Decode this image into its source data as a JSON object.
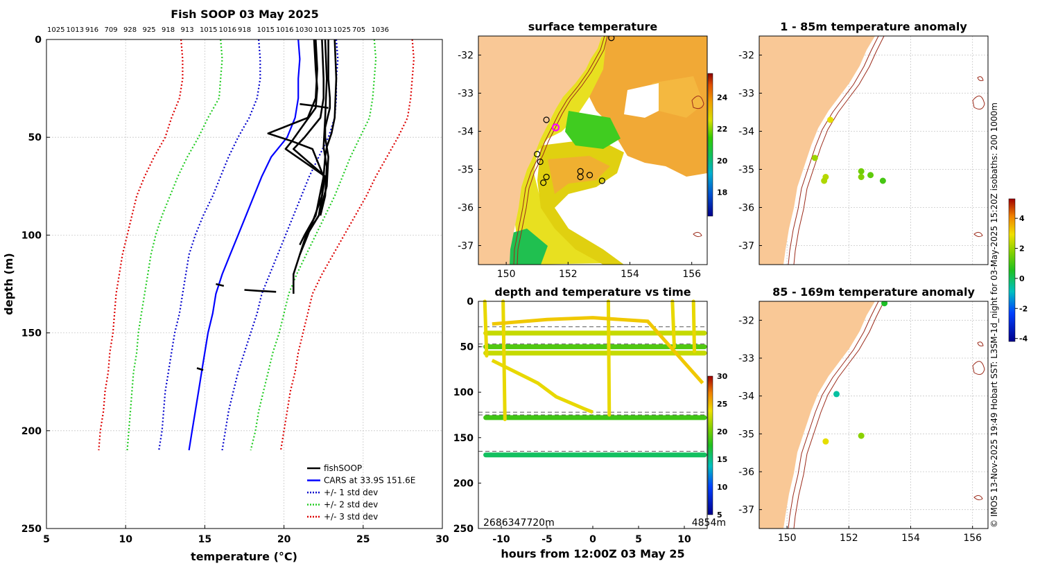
{
  "credit": "© IMOS 13-Nov-2025 19:49 Hobart SST: L3SM-1d_night for 03-May-2025 15:20Z isobaths: 200  1000m",
  "colors": {
    "land": "#f9c896",
    "fishsoop": "#000000",
    "cars": "#0000ff",
    "std1": "#0000cc",
    "std2": "#22cc22",
    "std3": "#dd0000",
    "isobath": "#9b2a1a"
  },
  "chart_data": [
    {
      "type": "line",
      "title": "Fish SOOP 03 May 2025",
      "xlabel": "temperature (°C)",
      "ylabel": "depth (m)",
      "xlim": [
        5,
        30
      ],
      "ylim": [
        250,
        0
      ],
      "xticks": [
        5,
        10,
        15,
        20,
        25,
        30
      ],
      "yticks": [
        0,
        50,
        100,
        150,
        200,
        250
      ],
      "top_labels": [
        "1025",
        "1013",
        "916",
        "709",
        "928",
        "925",
        "918",
        "913",
        "1015",
        "1016",
        "918",
        "1015",
        "1016",
        "1030",
        "1013",
        "1025",
        "705",
        "1036"
      ],
      "legend": [
        "fishSOOP",
        "CARS at 33.9S 151.6E",
        "+/- 1 std dev",
        "+/- 2 std dev",
        "+/- 3 std dev"
      ],
      "depths": [
        0,
        10,
        20,
        30,
        40,
        50,
        60,
        70,
        80,
        90,
        100,
        110,
        120,
        130,
        140,
        150,
        160,
        170,
        180,
        190,
        200,
        210
      ],
      "series": [
        {
          "name": "CARS",
          "values": [
            20.9,
            21.0,
            20.9,
            20.9,
            20.7,
            20.2,
            19.2,
            18.6,
            18.1,
            17.6,
            17.1,
            16.6,
            16.1,
            15.7,
            15.5,
            15.2,
            15.0,
            14.8,
            14.6,
            14.4,
            14.2,
            14.0
          ]
        },
        {
          "name": "-1 std",
          "values": [
            18.4,
            18.5,
            18.5,
            18.3,
            17.8,
            17.1,
            16.5,
            16.0,
            15.5,
            14.9,
            14.4,
            14.0,
            13.8,
            13.6,
            13.4,
            13.1,
            12.9,
            12.7,
            12.5,
            12.4,
            12.3,
            12.1
          ]
        },
        {
          "name": "+1 std",
          "values": [
            23.3,
            23.4,
            23.3,
            23.3,
            23.2,
            22.8,
            22.2,
            21.6,
            21.1,
            20.6,
            20.1,
            19.6,
            19.1,
            18.6,
            18.3,
            17.9,
            17.5,
            17.1,
            16.8,
            16.5,
            16.3,
            16.1
          ]
        },
        {
          "name": "-2 std",
          "values": [
            16.0,
            16.1,
            16.0,
            15.9,
            15.2,
            14.6,
            13.9,
            13.3,
            12.8,
            12.3,
            11.9,
            11.6,
            11.4,
            11.2,
            11.0,
            10.8,
            10.7,
            10.5,
            10.4,
            10.3,
            10.2,
            10.1
          ]
        },
        {
          "name": "+2 std",
          "values": [
            25.7,
            25.8,
            25.7,
            25.6,
            25.4,
            24.8,
            24.2,
            23.7,
            23.2,
            22.6,
            22.0,
            21.4,
            20.8,
            20.3,
            20.0,
            19.7,
            19.3,
            19.0,
            18.7,
            18.4,
            18.2,
            17.9
          ]
        },
        {
          "name": "-3 std",
          "values": [
            13.5,
            13.6,
            13.6,
            13.4,
            12.9,
            12.5,
            11.8,
            11.2,
            10.7,
            10.4,
            10.1,
            9.8,
            9.6,
            9.4,
            9.3,
            9.2,
            9.0,
            8.9,
            8.7,
            8.6,
            8.4,
            8.3
          ]
        },
        {
          "name": "+3 std",
          "values": [
            28.1,
            28.2,
            28.1,
            28.0,
            27.8,
            27.2,
            26.5,
            25.8,
            25.2,
            24.5,
            23.8,
            23.1,
            22.4,
            21.8,
            21.5,
            21.2,
            20.9,
            20.7,
            20.4,
            20.2,
            20.0,
            19.8
          ]
        }
      ],
      "fishsoop_profiles": [
        {
          "depth": [
            0,
            20,
            40,
            48,
            55,
            60,
            80,
            100,
            110,
            120,
            130
          ],
          "temp": [
            23.2,
            23.3,
            23.2,
            23.0,
            22.7,
            22.6,
            22.4,
            21.5,
            21.0,
            20.6,
            20.6
          ]
        },
        {
          "depth": [
            0,
            20,
            30,
            40,
            50,
            56,
            70,
            90,
            100,
            110
          ],
          "temp": [
            22.4,
            22.5,
            22.5,
            22.3,
            21.3,
            20.6,
            22.6,
            22.2,
            21.4,
            21.0
          ]
        },
        {
          "depth": [
            0,
            15,
            30,
            40,
            48,
            52,
            56,
            70,
            90,
            100,
            105
          ],
          "temp": [
            22.0,
            22.1,
            22.0,
            21.5,
            19.0,
            20.5,
            21.8,
            22.5,
            22.0,
            21.3,
            21.0
          ]
        },
        {
          "depth": [
            0,
            20,
            30,
            35,
            45,
            50,
            60,
            75,
            90,
            98
          ],
          "temp": [
            22.8,
            22.8,
            22.9,
            22.9,
            22.6,
            22.6,
            22.8,
            22.7,
            22.2,
            21.6
          ]
        },
        {
          "depth": [
            0,
            15,
            25,
            35,
            44,
            52,
            56,
            70
          ],
          "temp": [
            21.9,
            22.0,
            22.1,
            22.0,
            21.2,
            20.5,
            20.1,
            22.6
          ]
        },
        {
          "depth": [
            0,
            20,
            40,
            55,
            65,
            80,
            90
          ],
          "temp": [
            22.6,
            22.7,
            22.6,
            22.5,
            22.7,
            22.6,
            22.3
          ]
        },
        {
          "depth": [
            33,
            34,
            35
          ],
          "temp": [
            21.0,
            22.0,
            22.8
          ]
        },
        {
          "depth": [
            128,
            128.5,
            129
          ],
          "temp": [
            17.5,
            18.4,
            19.5
          ]
        },
        {
          "depth": [
            125,
            126
          ],
          "temp": [
            15.7,
            16.2
          ]
        },
        {
          "depth": [
            168,
            169
          ],
          "temp": [
            14.5,
            14.9
          ]
        }
      ]
    },
    {
      "type": "heatmap",
      "title": "surface temperature",
      "xlim": [
        149.1,
        156.5
      ],
      "ylim": [
        -37.5,
        -31.5
      ],
      "xticks": [
        150,
        152,
        154,
        156
      ],
      "yticks": [
        -32,
        -33,
        -34,
        -35,
        -36,
        -37
      ],
      "colorbar": {
        "range": [
          16.5,
          25.5
        ],
        "ticks": [
          18,
          20,
          22,
          24
        ]
      },
      "stations": [
        {
          "lon": 151.3,
          "lat": -33.7
        },
        {
          "lon": 151.0,
          "lat": -34.6
        },
        {
          "lon": 151.1,
          "lat": -34.8
        },
        {
          "lon": 151.3,
          "lat": -35.2
        },
        {
          "lon": 151.2,
          "lat": -35.35
        },
        {
          "lon": 152.4,
          "lat": -35.05
        },
        {
          "lon": 152.4,
          "lat": -35.2
        },
        {
          "lon": 152.7,
          "lat": -35.15
        },
        {
          "lon": 153.1,
          "lat": -35.3
        },
        {
          "lon": 153.4,
          "lat": -31.55
        }
      ],
      "highlight": {
        "lon": 151.6,
        "lat": -33.9
      }
    },
    {
      "type": "scatter",
      "title": "depth and temperature vs time",
      "xlabel": "hours from 12:00Z 03 May 25",
      "xlim": [
        -12.5,
        12.5
      ],
      "ylim": [
        250,
        0
      ],
      "xticks": [
        -10,
        -5,
        0,
        5,
        10
      ],
      "yticks": [
        0,
        50,
        100,
        150,
        200,
        250
      ],
      "colorbar": {
        "range": [
          5,
          30
        ],
        "ticks": [
          5,
          10,
          15,
          20,
          25,
          30
        ]
      },
      "annotations": [
        "2686347720m",
        "4854m"
      ],
      "dashed_depths": [
        28,
        47,
        50,
        122,
        125,
        165
      ],
      "tracks": [
        {
          "depth": 35,
          "temp": 22.5
        },
        {
          "depth": 50,
          "temp": 19.0
        },
        {
          "depth": 57,
          "temp": 22.5
        },
        {
          "depth": 128,
          "temp": 18.5
        },
        {
          "depth": 169,
          "temp": 16.0
        }
      ]
    },
    {
      "type": "scatter",
      "title": "1 - 85m temperature anomaly",
      "xlim": [
        149.1,
        156.5
      ],
      "ylim": [
        -37.5,
        -31.5
      ],
      "xticks": [
        150,
        152,
        154,
        156
      ],
      "yticks": [
        -32,
        -33,
        -34,
        -35,
        -36,
        -37
      ],
      "points": [
        {
          "lon": 151.4,
          "lat": -33.7,
          "value": 2.8
        },
        {
          "lon": 150.9,
          "lat": -34.7,
          "value": 2.0
        },
        {
          "lon": 151.25,
          "lat": -35.2,
          "value": 2.3
        },
        {
          "lon": 151.2,
          "lat": -35.3,
          "value": 2.2
        },
        {
          "lon": 152.4,
          "lat": -35.05,
          "value": 1.5
        },
        {
          "lon": 152.4,
          "lat": -35.2,
          "value": 1.7
        },
        {
          "lon": 152.7,
          "lat": -35.15,
          "value": 1.3
        },
        {
          "lon": 153.1,
          "lat": -35.3,
          "value": 1.0
        }
      ]
    },
    {
      "type": "scatter",
      "title": "85 - 169m temperature anomaly",
      "xlim": [
        149.1,
        156.5
      ],
      "ylim": [
        -37.5,
        -31.5
      ],
      "xticks": [
        150,
        152,
        154,
        156
      ],
      "yticks": [
        -32,
        -33,
        -34,
        -35,
        -36,
        -37
      ],
      "points": [
        {
          "lon": 153.15,
          "lat": -31.55,
          "value": 0.5
        },
        {
          "lon": 151.6,
          "lat": -33.95,
          "value": -0.6
        },
        {
          "lon": 151.25,
          "lat": -35.2,
          "value": 2.8
        },
        {
          "lon": 152.4,
          "lat": -35.05,
          "value": 1.8
        }
      ],
      "colorbar": {
        "range": [
          -4.2,
          5.3
        ],
        "ticks": [
          -4,
          -2,
          0,
          2,
          4
        ]
      }
    }
  ]
}
